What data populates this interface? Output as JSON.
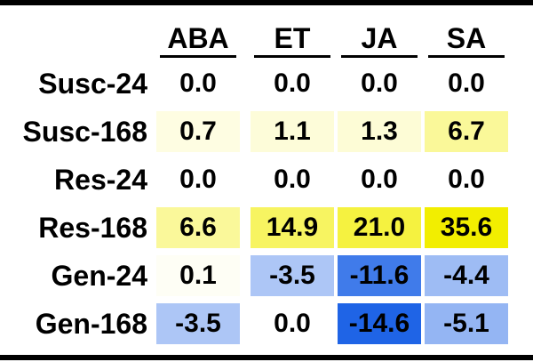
{
  "chart_data": {
    "type": "heatmap",
    "columns": [
      "ABA",
      "ET",
      "JA",
      "SA"
    ],
    "rows": [
      {
        "label": "Susc-24",
        "values": [
          "0.0",
          "0.0",
          "0.0",
          "0.0"
        ]
      },
      {
        "label": "Susc-168",
        "values": [
          "0.7",
          "1.1",
          "1.3",
          "6.7"
        ]
      },
      {
        "label": "Res-24",
        "values": [
          "0.0",
          "0.0",
          "0.0",
          "0.0"
        ]
      },
      {
        "label": "Res-168",
        "values": [
          "6.6",
          "14.9",
          "21.0",
          "35.6"
        ]
      },
      {
        "label": "Gen-24",
        "values": [
          "0.1",
          "-3.5",
          "-11.6",
          "-4.4"
        ]
      },
      {
        "label": "Gen-168",
        "values": [
          "-3.5",
          "0.0",
          "-14.6",
          "-5.1"
        ]
      }
    ],
    "colors": {
      "positive_max": "#f2ee00",
      "negative_max": "#1f64e6",
      "neutral": "#ffffff"
    }
  }
}
